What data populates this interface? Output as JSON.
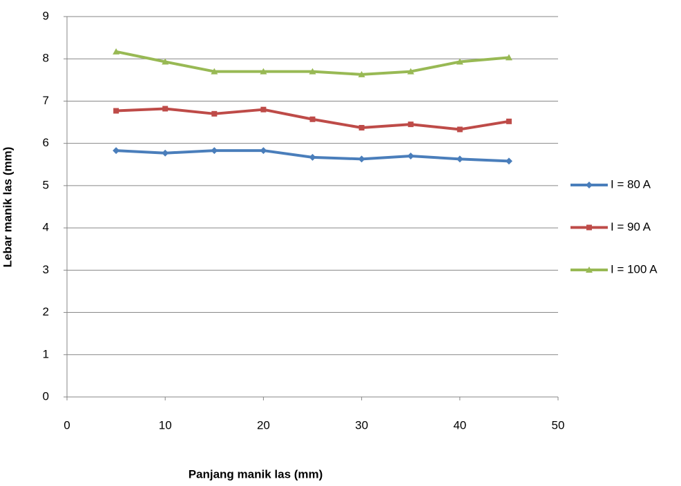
{
  "chart_data": {
    "type": "line",
    "x_label": "Panjang manik las (mm)",
    "y_label": "Lebar manik las (mm)",
    "x": [
      5,
      10,
      15,
      20,
      25,
      30,
      35,
      40,
      45
    ],
    "series": [
      {
        "name": "I = 80 A",
        "color": "#4a7ebb",
        "marker": "diamond",
        "values": [
          5.83,
          5.77,
          5.83,
          5.83,
          5.67,
          5.63,
          5.7,
          5.63,
          5.58
        ]
      },
      {
        "name": "I = 90 A",
        "color": "#be4b48",
        "marker": "square",
        "values": [
          6.77,
          6.82,
          6.7,
          6.8,
          6.57,
          6.37,
          6.45,
          6.33,
          6.52
        ]
      },
      {
        "name": "I = 100 A",
        "color": "#98b954",
        "marker": "triangle",
        "values": [
          8.17,
          7.93,
          7.7,
          7.7,
          7.7,
          7.63,
          7.7,
          7.93,
          8.03
        ]
      }
    ],
    "xlim": [
      0,
      50
    ],
    "xticks": [
      0,
      10,
      20,
      30,
      40,
      50
    ],
    "ylim": [
      0,
      9
    ],
    "yticks": [
      0,
      1,
      2,
      3,
      4,
      5,
      6,
      7,
      8,
      9
    ],
    "grid": true,
    "legend": "right"
  }
}
